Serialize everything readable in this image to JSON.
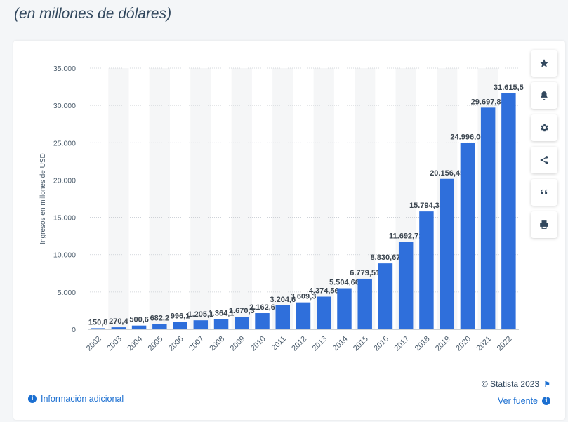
{
  "header": {
    "subtitle": "(en millones de dólares)"
  },
  "toolbar": {
    "buttons": [
      {
        "name": "favorite",
        "icon": "star-icon"
      },
      {
        "name": "notifications",
        "icon": "bell-icon"
      },
      {
        "name": "settings",
        "icon": "gear-icon"
      },
      {
        "name": "share",
        "icon": "share-icon"
      },
      {
        "name": "cite",
        "icon": "quote-icon"
      },
      {
        "name": "print",
        "icon": "printer-icon"
      }
    ]
  },
  "footer": {
    "info_link": "Información adicional",
    "copyright": "© Statista 2023",
    "source_link": "Ver fuente"
  },
  "colors": {
    "bar": "#2f6fdb",
    "accent": "#1b6fd1",
    "text": "#32485e",
    "stripe": "#f5f6f7",
    "grid": "#c8ccd2"
  },
  "chart_data": {
    "type": "bar",
    "title": "",
    "xlabel": "",
    "ylabel": "Ingresos en millones de USD",
    "ylim": [
      0,
      35000
    ],
    "yticks": [
      0,
      5000,
      10000,
      15000,
      20000,
      25000,
      30000,
      35000
    ],
    "ytick_labels": [
      "0",
      "5.000",
      "10.000",
      "15.000",
      "20.000",
      "25.000",
      "30.000",
      "35.000"
    ],
    "grid": true,
    "categories": [
      "2002",
      "2003",
      "2004",
      "2005",
      "2006",
      "2007",
      "2008",
      "2009",
      "2010",
      "2011",
      "2012",
      "2013",
      "2014",
      "2015",
      "2016",
      "2017",
      "2018",
      "2019",
      "2020",
      "2021",
      "2022"
    ],
    "values": [
      150.8,
      270.4,
      500.6,
      682.2,
      996.1,
      1205.1,
      1364.1,
      1670.3,
      2162.6,
      3204.6,
      3609.3,
      4374.56,
      5504.66,
      6779.51,
      8830.67,
      11692.71,
      15794.34,
      20156.45,
      24996.06,
      29697.84,
      31615.5
    ],
    "value_labels": [
      "150,8",
      "270,4",
      "500,6",
      "682,2",
      "996,1",
      "1.205,1",
      "1.364,1",
      "1.670,3",
      "2.162,6",
      "3.204,6",
      "3.609,3",
      "4.374,56",
      "5.504,66",
      "6.779,51",
      "8.830,67",
      "11.692,71",
      "15.794,34",
      "20.156,45",
      "24.996,06",
      "29.697,84",
      "31.615,5"
    ]
  }
}
